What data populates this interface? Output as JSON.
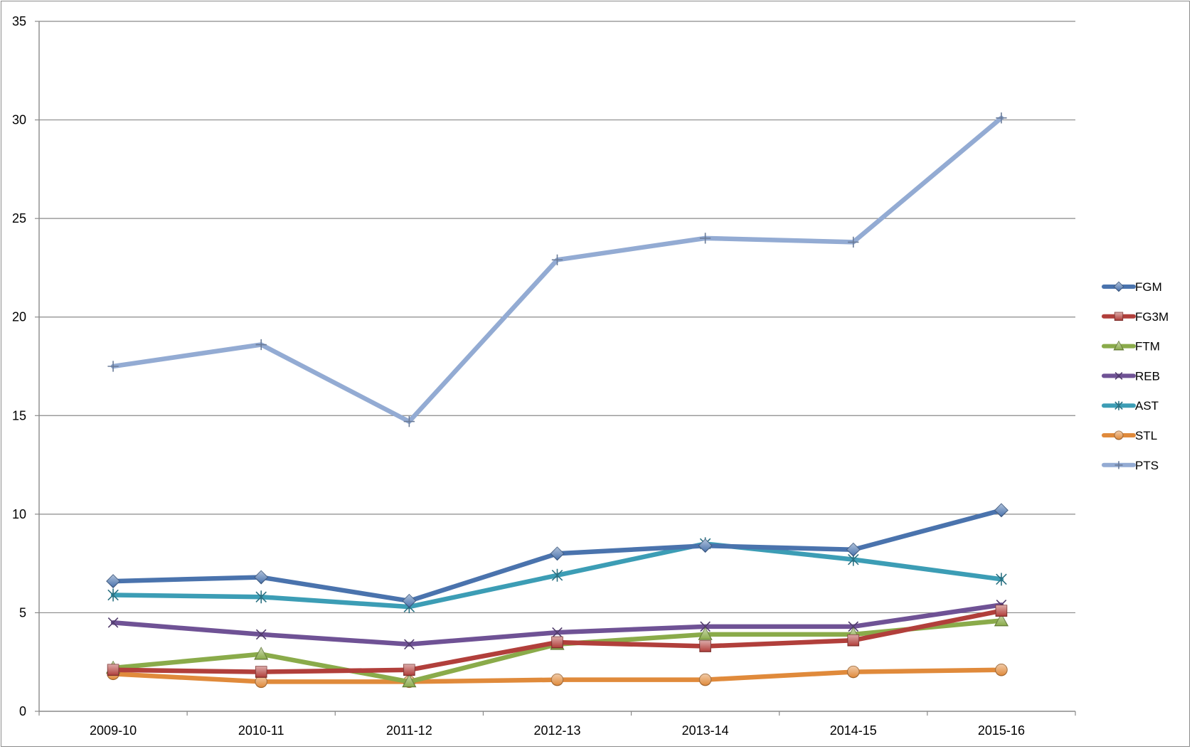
{
  "chart_data": {
    "type": "line",
    "title": "",
    "xlabel": "",
    "ylabel": "",
    "categories": [
      "2009-10",
      "2010-11",
      "2011-12",
      "2012-13",
      "2013-14",
      "2014-15",
      "2015-16"
    ],
    "ylim": [
      0,
      35
    ],
    "yticks": [
      0,
      5,
      10,
      15,
      20,
      25,
      30,
      35
    ],
    "grid": true,
    "legend_position": "right",
    "series": [
      {
        "name": "FGM",
        "color": "#4a73ad",
        "marker": "diamond",
        "values": [
          6.6,
          6.8,
          5.6,
          8.0,
          8.4,
          8.2,
          10.2
        ]
      },
      {
        "name": "FG3M",
        "color": "#b13f3b",
        "marker": "square",
        "values": [
          2.1,
          2.0,
          2.1,
          3.5,
          3.3,
          3.6,
          5.1
        ]
      },
      {
        "name": "FTM",
        "color": "#8aab4a",
        "marker": "triangle",
        "values": [
          2.2,
          2.9,
          1.5,
          3.4,
          3.9,
          3.9,
          4.6
        ]
      },
      {
        "name": "REB",
        "color": "#6f5295",
        "marker": "x",
        "values": [
          4.5,
          3.9,
          3.4,
          4.0,
          4.3,
          4.3,
          5.4
        ]
      },
      {
        "name": "AST",
        "color": "#3c9db5",
        "marker": "star",
        "values": [
          5.9,
          5.8,
          5.3,
          6.9,
          8.5,
          7.7,
          6.7
        ]
      },
      {
        "name": "STL",
        "color": "#e08a3b",
        "marker": "circle",
        "values": [
          1.9,
          1.5,
          1.5,
          1.6,
          1.6,
          2.0,
          2.1
        ]
      },
      {
        "name": "PTS",
        "color": "#93abd3",
        "marker": "plus",
        "values": [
          17.5,
          18.6,
          14.7,
          22.9,
          24.0,
          23.8,
          30.1
        ]
      }
    ]
  }
}
